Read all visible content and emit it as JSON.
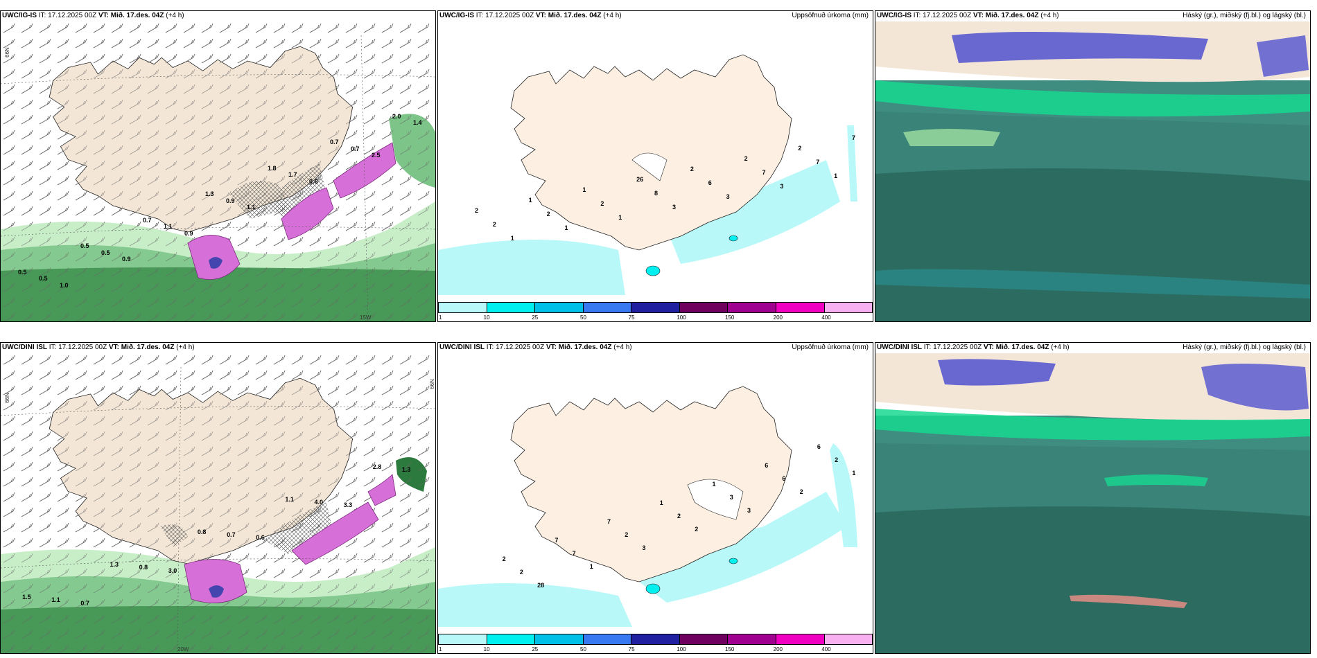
{
  "panels": {
    "top_left": {
      "model": "UWC/IG-IS",
      "it_label": "IT:",
      "it": "17.12.2025 00Z",
      "vt_label": "VT:",
      "vt": "Mið. 17.des. 04Z",
      "lead": "(+4 h)",
      "title": "",
      "lat_label": "66N",
      "lat_label_r": "",
      "lon_label": "15W"
    },
    "top_mid": {
      "model": "UWC/IG-IS",
      "it_label": "IT:",
      "it": "17.12.2025 00Z",
      "vt_label": "VT:",
      "vt": "Mið. 17.des. 04Z",
      "lead": "(+4 h)",
      "title": "Uppsöfnuð úrkoma (mm)"
    },
    "top_right": {
      "model": "UWC/IG-IS",
      "it_label": "IT:",
      "it": "17.12.2025 00Z",
      "vt_label": "VT:",
      "vt": "Mið. 17.des. 04Z",
      "lead": "(+4 h)",
      "title": "Háský (gr.), miðský (fj.bl.) og lágský (bl.)"
    },
    "bot_left": {
      "model": "UWC/DINI ISL",
      "it_label": "IT:",
      "it": "17.12.2025 00Z",
      "vt_label": "VT:",
      "vt": "Mið. 17.des. 04Z",
      "lead": "(+4 h)",
      "title": "",
      "lat_label": "66N",
      "lat_label_r": "66N",
      "lon_label": "20W"
    },
    "bot_mid": {
      "model": "UWC/DINI ISL",
      "it_label": "IT:",
      "it": "17.12.2025 00Z",
      "vt_label": "VT:",
      "vt": "Mið. 17.des. 04Z",
      "lead": "(+4 h)",
      "title": "Uppsöfnuð úrkoma (mm)"
    },
    "bot_right": {
      "model": "UWC/DINI ISL",
      "it_label": "IT:",
      "it": "17.12.2025 00Z",
      "vt_label": "VT:",
      "vt": "Mið. 17.des. 04Z",
      "lead": "(+4 h)",
      "title": "Háský (gr.), miðský (fj.bl.) og lágský (bl.)"
    }
  },
  "legend": {
    "ticks": [
      "1",
      "10",
      "25",
      "50",
      "75",
      "100",
      "150",
      "200",
      "400"
    ],
    "colors": [
      "#b8f8f8",
      "#00f0f0",
      "#00c0e8",
      "#3878f0",
      "#2020a0",
      "#700060",
      "#a00090",
      "#f000c0",
      "#f8b0f0"
    ]
  },
  "precip_labels_top_left": [
    "0.5",
    "0.5",
    "1.0",
    "0.5",
    "0.5",
    "0.9",
    "0.7",
    "1.1",
    "0.9",
    "1.3",
    "0.9",
    "1.1",
    "1.8",
    "1.7",
    "0.6",
    "0.7",
    "0.7",
    "2.5",
    "2.0",
    "1.4"
  ],
  "precip_labels_bot_left": [
    "1.5",
    "1.1",
    "0.7",
    "1.3",
    "0.8",
    "3.0",
    "0.8",
    "0.7",
    "0.6",
    "1.1",
    "4.0",
    "3.3",
    "2.8",
    "1.3"
  ],
  "accum_labels_top_mid": [
    "2",
    "2",
    "1",
    "1",
    "2",
    "1",
    "1",
    "2",
    "1",
    "26",
    "8",
    "3",
    "2",
    "6",
    "3",
    "2",
    "7",
    "3",
    "2",
    "7",
    "1",
    "7"
  ],
  "accum_labels_bot_mid": [
    "2",
    "2",
    "28",
    "7",
    "7",
    "1",
    "7",
    "2",
    "3",
    "1",
    "2",
    "2",
    "1",
    "3",
    "3",
    "6",
    "6",
    "2",
    "6",
    "2",
    "1"
  ],
  "colors": {
    "land": "#f3e6d6",
    "land_cloudy": "#ede0d0",
    "sea": "#ffffff",
    "green_light": "#c8eec8",
    "green": "#4aa05a",
    "green_dark": "#1f6a35",
    "magenta": "#d670d8",
    "cyan_light": "#b8f8f8",
    "cloud_dark": "#2c6b60",
    "cloud_mid": "#3f8c80",
    "cloud_blue": "#5a5ad0",
    "cloud_green": "#18d890"
  }
}
